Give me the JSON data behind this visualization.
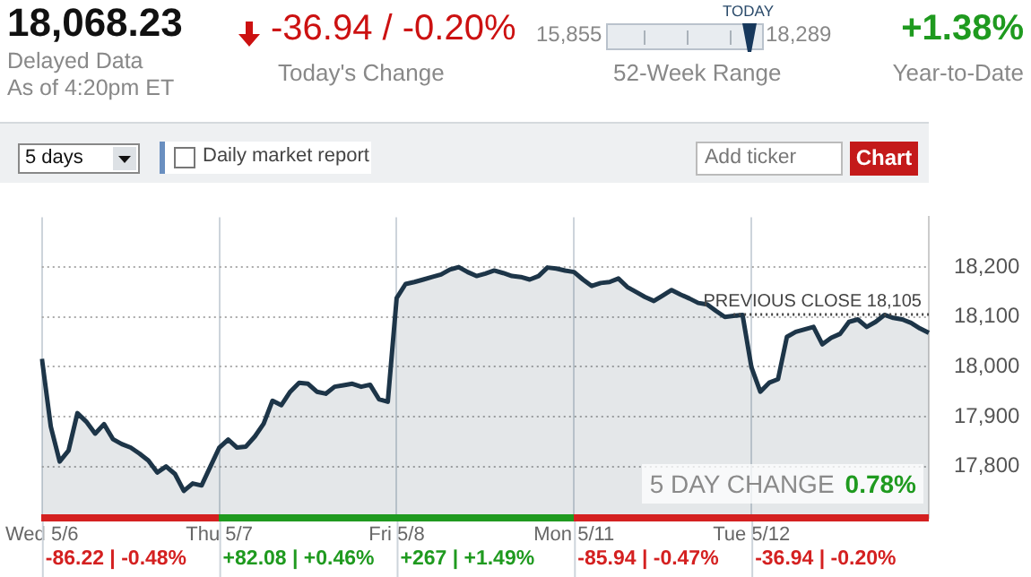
{
  "chart_data": {
    "type": "area",
    "categories": [
      "Wed 5/6",
      null,
      null,
      null,
      null,
      null,
      null,
      null,
      null,
      null,
      null,
      null,
      null,
      null,
      null,
      null,
      null,
      null,
      null,
      null,
      "Thu 5/7",
      null,
      null,
      null,
      null,
      null,
      null,
      null,
      null,
      null,
      null,
      null,
      null,
      null,
      null,
      null,
      null,
      null,
      null,
      null,
      "Fri 5/8",
      null,
      null,
      null,
      null,
      null,
      null,
      null,
      null,
      null,
      null,
      null,
      null,
      null,
      null,
      null,
      null,
      null,
      null,
      null,
      "Mon 5/11",
      null,
      null,
      null,
      null,
      null,
      null,
      null,
      null,
      null,
      null,
      null,
      null,
      null,
      null,
      null,
      null,
      null,
      null,
      null,
      "Tue 5/12",
      null,
      null,
      null,
      null,
      null,
      null,
      null,
      null,
      null,
      null,
      null,
      null,
      null,
      null,
      null,
      null,
      null,
      null,
      null,
      null
    ],
    "series": [
      {
        "color": "#1d3548",
        "values": [
          18016,
          17880,
          17810,
          17832,
          17907,
          17890,
          17866,
          17885,
          17855,
          17845,
          17838,
          17826,
          17812,
          17788,
          17800,
          17785,
          17751,
          17766,
          17762,
          17800,
          17838,
          17854,
          17838,
          17840,
          17860,
          17886,
          17932,
          17923,
          17950,
          17968,
          17966,
          17950,
          17946,
          17960,
          17963,
          17966,
          17960,
          17964,
          17935,
          17930,
          18138,
          18166,
          18170,
          18175,
          18180,
          18185,
          18195,
          18200,
          18190,
          18182,
          18187,
          18193,
          18188,
          18182,
          18180,
          18175,
          18182,
          18199,
          18197,
          18193,
          18190,
          18175,
          18162,
          18168,
          18170,
          18177,
          18160,
          18150,
          18140,
          18132,
          18143,
          18154,
          18145,
          18137,
          18128,
          18125,
          18112,
          18100,
          18102,
          18104,
          17999,
          17950,
          17968,
          17975,
          18060,
          18070,
          18075,
          18080,
          18045,
          18058,
          18066,
          18090,
          18095,
          18080,
          18090,
          18104,
          18098,
          18095,
          18088,
          18077,
          18068
        ]
      }
    ],
    "ylim": [
      17697,
      18300
    ],
    "yticks": [
      {
        "value": 17800,
        "label": "17,800"
      },
      {
        "value": 17900,
        "label": "17,900"
      },
      {
        "value": 18000,
        "label": "18,000"
      },
      {
        "value": 18100,
        "label": "18,100"
      },
      {
        "value": 18200,
        "label": "18,200"
      }
    ],
    "grid": true,
    "ref_lines": [
      {
        "axis": "y",
        "value": 18105,
        "label": "PREVIOUS CLOSE 18,105",
        "color": "#444444",
        "line_style": "dotted"
      }
    ],
    "annotations": [
      "18,068.23",
      "Delayed Data",
      "As of 4:20pm ET",
      "-36.94 / -0.20%",
      "Today's Change",
      "15,855",
      "18,289",
      "TODAY",
      "52-Week Range",
      "+1.38%",
      "Year-to-Date",
      "5 days",
      "Daily market report",
      "Add ticker",
      "Chart",
      "5 DAY CHANGE",
      "0.78%",
      "-86.22 | -0.48%",
      "+82.08 | +0.46%",
      "+267 | +1.49%",
      "-85.94 | -0.47%",
      "-36.94 | -0.20%"
    ]
  }
}
